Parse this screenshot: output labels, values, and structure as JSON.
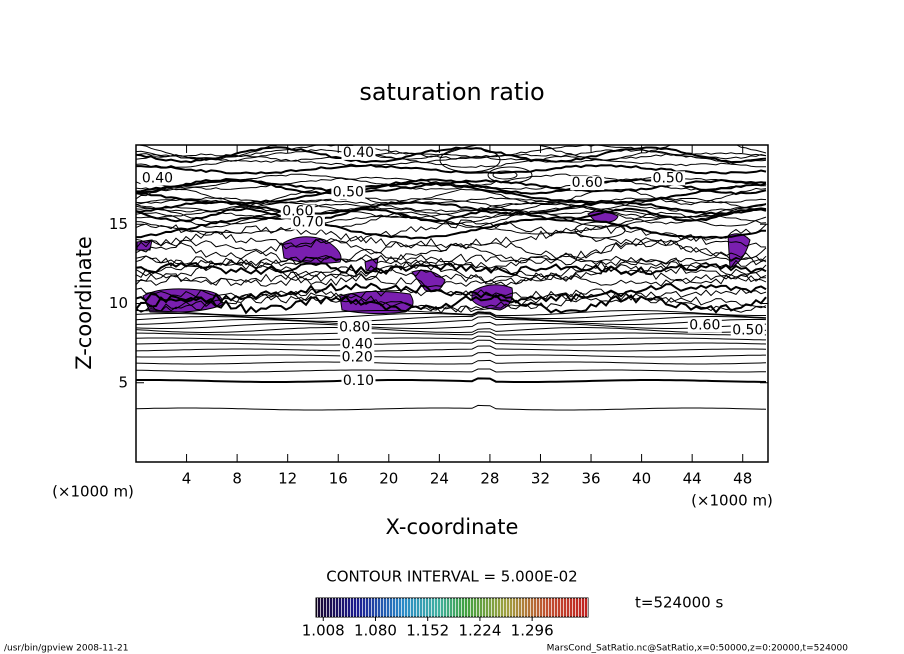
{
  "chart_data": {
    "type": "contour",
    "title": "saturation ratio",
    "x_label": "X-coordinate",
    "y_label": "Z-coordinate",
    "x_unit_left": "(×1000 m)",
    "x_unit_right": "(×1000 m)",
    "xlim": [
      0,
      50
    ],
    "ylim": [
      0,
      20
    ],
    "xticks": [
      4,
      8,
      12,
      16,
      20,
      24,
      28,
      32,
      36,
      40,
      44,
      48
    ],
    "yticks": [
      5,
      10,
      15
    ],
    "contour_labels": [
      {
        "label": "0.40",
        "x": 17.6,
        "y": 19.5
      },
      {
        "label": "0.40",
        "x": 1.7,
        "y": 17.9
      },
      {
        "label": "0.50",
        "x": 16.8,
        "y": 17.0
      },
      {
        "label": "0.60",
        "x": 35.7,
        "y": 17.6
      },
      {
        "label": "0.50",
        "x": 42.1,
        "y": 17.9
      },
      {
        "label": "0.60",
        "x": 12.8,
        "y": 15.8
      },
      {
        "label": "0.70",
        "x": 13.6,
        "y": 15.1
      },
      {
        "label": "0.80",
        "x": 17.3,
        "y": 8.5
      },
      {
        "label": "0.40",
        "x": 17.5,
        "y": 7.4
      },
      {
        "label": "0.20",
        "x": 17.5,
        "y": 6.6
      },
      {
        "label": "0.10",
        "x": 17.6,
        "y": 5.1
      },
      {
        "label": "0.60",
        "x": 45.0,
        "y": 8.6
      },
      {
        "label": "0.50",
        "x": 48.4,
        "y": 8.3
      }
    ],
    "contour_interval": "CONTOUR INTERVAL = 5.000E-02",
    "colorbar_lim": [
      0.998,
      1.373
    ],
    "colorbar_ticks": [
      1.008,
      {
        "value": 1.08,
        "label": "1.080"
      },
      1.152,
      1.224,
      1.296
    ],
    "time": "t=524000 s",
    "footer_left": "/usr/bin/gpview   2008-11-21",
    "footer_right": "MarsCond_SatRatio.nc@SatRatio,x=0:50000,z=0:20000,t=524000"
  }
}
